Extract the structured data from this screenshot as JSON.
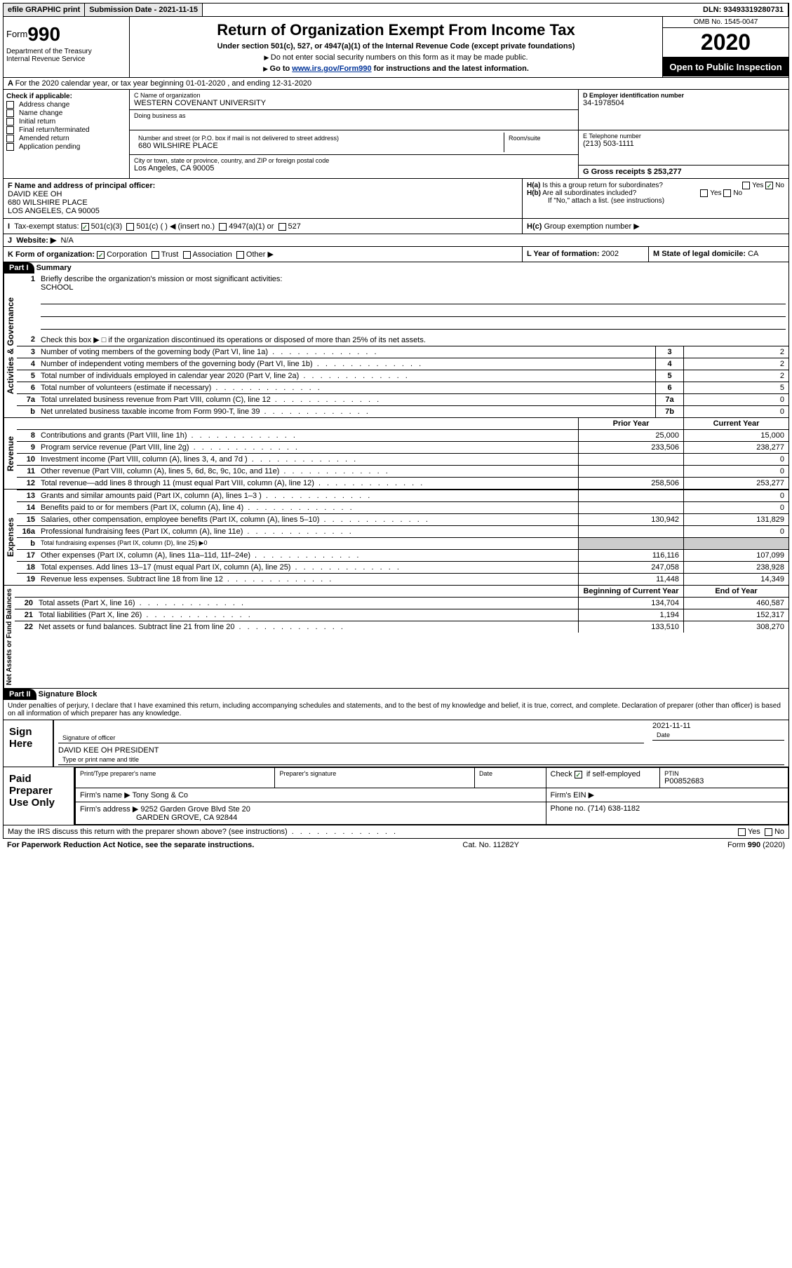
{
  "topbar": {
    "efile": "efile GRAPHIC print",
    "submission_label": "Submission Date - ",
    "submission_date": "2021-11-15",
    "dln_label": "DLN: ",
    "dln": "93493319280731"
  },
  "header": {
    "form_word": "Form",
    "form_num": "990",
    "dept": "Department of the Treasury\nInternal Revenue Service",
    "title": "Return of Organization Exempt From Income Tax",
    "sub1": "Under section 501(c), 527, or 4947(a)(1) of the Internal Revenue Code (except private foundations)",
    "sub2": "Do not enter social security numbers on this form as it may be made public.",
    "sub3_pre": "Go to ",
    "sub3_link": "www.irs.gov/Form990",
    "sub3_post": " for instructions and the latest information.",
    "omb": "OMB No. 1545-0047",
    "year": "2020",
    "inspect": "Open to Public Inspection"
  },
  "lineA": "For the 2020 calendar year, or tax year beginning 01-01-2020   , and ending 12-31-2020",
  "boxB": {
    "label": "Check if applicable:",
    "items": [
      "Address change",
      "Name change",
      "Initial return",
      "Final return/terminated",
      "Amended return",
      "Application pending"
    ]
  },
  "boxC": {
    "name_lbl": "C Name of organization",
    "name": "WESTERN COVENANT UNIVERSITY",
    "dba_lbl": "Doing business as",
    "addr_lbl": "Number and street (or P.O. box if mail is not delivered to street address)",
    "room_lbl": "Room/suite",
    "addr": "680 WILSHIRE PLACE",
    "city_lbl": "City or town, state or province, country, and ZIP or foreign postal code",
    "city": "Los Angeles, CA  90005"
  },
  "boxD": {
    "lbl": "D Employer identification number",
    "val": "34-1978504"
  },
  "boxE": {
    "lbl": "E Telephone number",
    "val": "(213) 503-1111"
  },
  "boxG": {
    "lbl": "G Gross receipts $ ",
    "val": "253,277"
  },
  "boxF": {
    "lbl": "F Name and address of principal officer:",
    "name": "DAVID KEE OH",
    "addr1": "680 WILSHIRE PLACE",
    "addr2": "LOS ANGELES, CA  90005"
  },
  "boxH": {
    "a": "Is this a group return for subordinates?",
    "b": "Are all subordinates included?",
    "b_note": "If \"No,\" attach a list. (see instructions)",
    "c": "Group exemption number ▶"
  },
  "boxI": {
    "lbl": "Tax-exempt status:",
    "opts": [
      "501(c)(3)",
      "501(c) (  ) ◀ (insert no.)",
      "4947(a)(1) or",
      "527"
    ]
  },
  "boxJ": {
    "lbl": "Website: ▶",
    "val": "N/A"
  },
  "boxK": {
    "lbl": "K Form of organization:",
    "opts": [
      "Corporation",
      "Trust",
      "Association",
      "Other ▶"
    ]
  },
  "boxL": {
    "lbl": "L Year of formation: ",
    "val": "2002"
  },
  "boxM": {
    "lbl": "M State of legal domicile: ",
    "val": "CA"
  },
  "part1": {
    "hdr": "Part I",
    "title": "Summary",
    "side_acts": "Activities & Governance",
    "side_rev": "Revenue",
    "side_exp": "Expenses",
    "side_net": "Net Assets or Fund Balances",
    "q1": "Briefly describe the organization's mission or most significant activities:",
    "q1_ans": "SCHOOL",
    "q2": "Check this box ▶ □ if the organization discontinued its operations or disposed of more than 25% of its net assets.",
    "rows_ag": [
      {
        "n": "3",
        "t": "Number of voting members of the governing body (Part VI, line 1a)",
        "c": "3",
        "v": "2"
      },
      {
        "n": "4",
        "t": "Number of independent voting members of the governing body (Part VI, line 1b)",
        "c": "4",
        "v": "2"
      },
      {
        "n": "5",
        "t": "Total number of individuals employed in calendar year 2020 (Part V, line 2a)",
        "c": "5",
        "v": "2"
      },
      {
        "n": "6",
        "t": "Total number of volunteers (estimate if necessary)",
        "c": "6",
        "v": "5"
      },
      {
        "n": "7a",
        "t": "Total unrelated business revenue from Part VIII, column (C), line 12",
        "c": "7a",
        "v": "0"
      },
      {
        "n": "b",
        "t": "Net unrelated business taxable income from Form 990-T, line 39",
        "c": "7b",
        "v": "0"
      }
    ],
    "col_prior": "Prior Year",
    "col_curr": "Current Year",
    "col_begin": "Beginning of Current Year",
    "col_end": "End of Year",
    "rows_rev": [
      {
        "n": "8",
        "t": "Contributions and grants (Part VIII, line 1h)",
        "p": "25,000",
        "c": "15,000"
      },
      {
        "n": "9",
        "t": "Program service revenue (Part VIII, line 2g)",
        "p": "233,506",
        "c": "238,277"
      },
      {
        "n": "10",
        "t": "Investment income (Part VIII, column (A), lines 3, 4, and 7d )",
        "p": "",
        "c": "0"
      },
      {
        "n": "11",
        "t": "Other revenue (Part VIII, column (A), lines 5, 6d, 8c, 9c, 10c, and 11e)",
        "p": "",
        "c": "0"
      },
      {
        "n": "12",
        "t": "Total revenue—add lines 8 through 11 (must equal Part VIII, column (A), line 12)",
        "p": "258,506",
        "c": "253,277"
      }
    ],
    "rows_exp": [
      {
        "n": "13",
        "t": "Grants and similar amounts paid (Part IX, column (A), lines 1–3 )",
        "p": "",
        "c": "0"
      },
      {
        "n": "14",
        "t": "Benefits paid to or for members (Part IX, column (A), line 4)",
        "p": "",
        "c": "0"
      },
      {
        "n": "15",
        "t": "Salaries, other compensation, employee benefits (Part IX, column (A), lines 5–10)",
        "p": "130,942",
        "c": "131,829"
      },
      {
        "n": "16a",
        "t": "Professional fundraising fees (Part IX, column (A), line 11e)",
        "p": "",
        "c": "0"
      },
      {
        "n": "b",
        "t": "Total fundraising expenses (Part IX, column (D), line 25) ▶0",
        "p": "GRAY",
        "c": "GRAY",
        "small": true
      },
      {
        "n": "17",
        "t": "Other expenses (Part IX, column (A), lines 11a–11d, 11f–24e)",
        "p": "116,116",
        "c": "107,099"
      },
      {
        "n": "18",
        "t": "Total expenses. Add lines 13–17 (must equal Part IX, column (A), line 25)",
        "p": "247,058",
        "c": "238,928"
      },
      {
        "n": "19",
        "t": "Revenue less expenses. Subtract line 18 from line 12",
        "p": "11,448",
        "c": "14,349"
      }
    ],
    "rows_net": [
      {
        "n": "20",
        "t": "Total assets (Part X, line 16)",
        "p": "134,704",
        "c": "460,587"
      },
      {
        "n": "21",
        "t": "Total liabilities (Part X, line 26)",
        "p": "1,194",
        "c": "152,317"
      },
      {
        "n": "22",
        "t": "Net assets or fund balances. Subtract line 21 from line 20",
        "p": "133,510",
        "c": "308,270"
      }
    ]
  },
  "part2": {
    "hdr": "Part II",
    "title": "Signature Block",
    "decl": "Under penalties of perjury, I declare that I have examined this return, including accompanying schedules and statements, and to the best of my knowledge and belief, it is true, correct, and complete. Declaration of preparer (other than officer) is based on all information of which preparer has any knowledge.",
    "sign_here": "Sign Here",
    "sig_officer": "Signature of officer",
    "sig_date": "2021-11-11",
    "date_lbl": "Date",
    "officer_name": "DAVID KEE OH  PRESIDENT",
    "type_lbl": "Type or print name and title",
    "paid": "Paid Preparer Use Only",
    "prep_name_lbl": "Print/Type preparer's name",
    "prep_sig_lbl": "Preparer's signature",
    "check_lbl": "Check",
    "self_emp": "if self-employed",
    "ptin_lbl": "PTIN",
    "ptin": "P00852683",
    "firm_name_lbl": "Firm's name  ▶",
    "firm_name": "Tony Song & Co",
    "firm_ein_lbl": "Firm's EIN ▶",
    "firm_addr_lbl": "Firm's address ▶",
    "firm_addr1": "9252 Garden Grove Blvd Ste 20",
    "firm_addr2": "GARDEN GROVE, CA  92844",
    "phone_lbl": "Phone no. ",
    "phone": "(714) 638-1182",
    "discuss": "May the IRS discuss this return with the preparer shown above? (see instructions)",
    "yes": "Yes",
    "no": "No"
  },
  "footer": {
    "l": "For Paperwork Reduction Act Notice, see the separate instructions.",
    "c": "Cat. No. 11282Y",
    "r": "Form 990 (2020)"
  }
}
